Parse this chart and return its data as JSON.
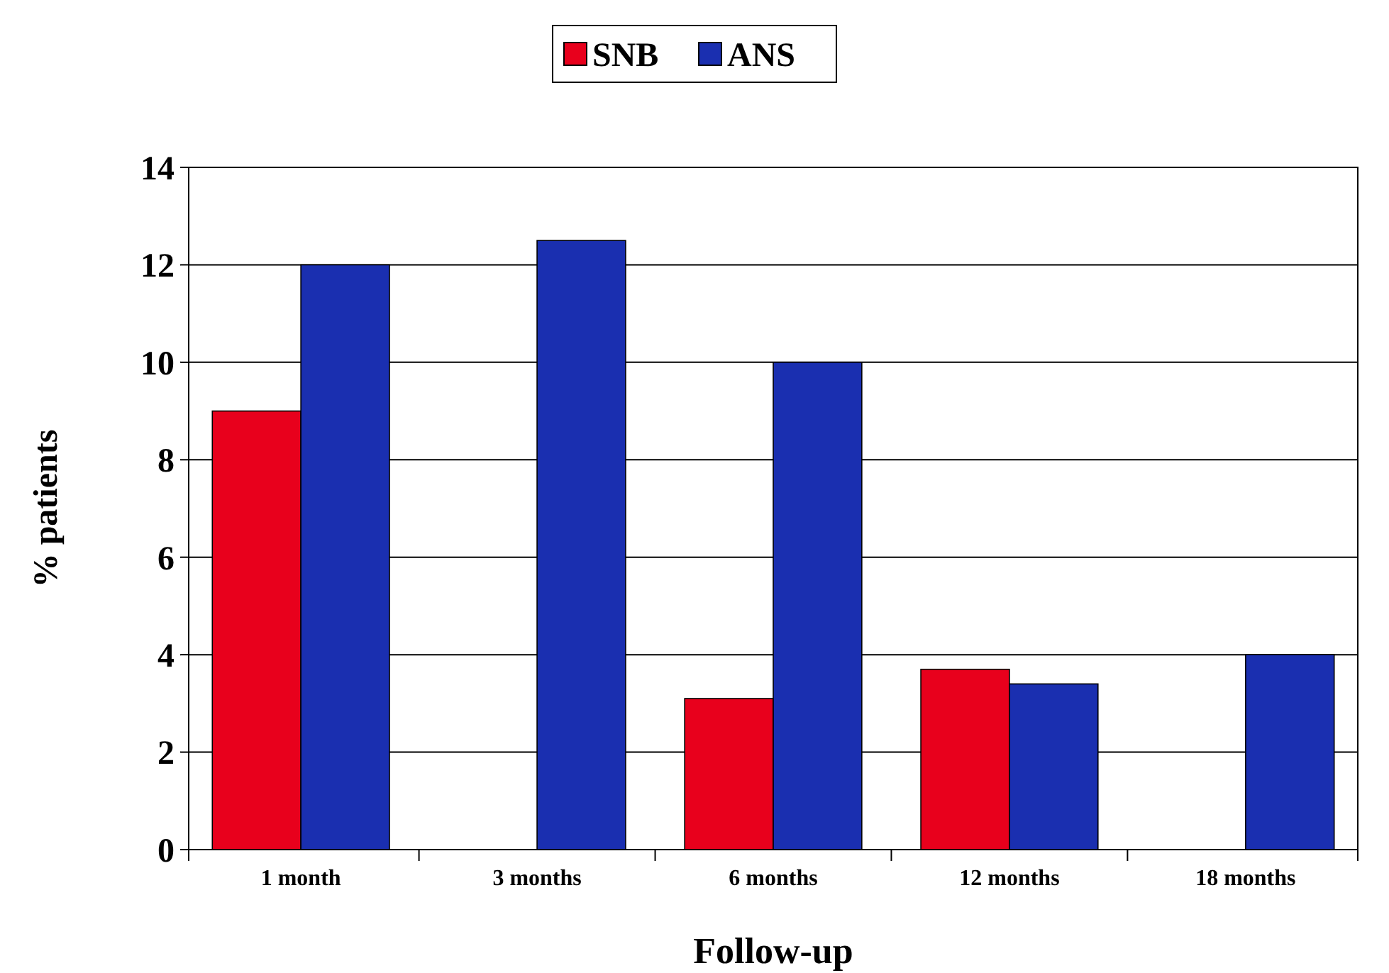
{
  "chart_data": {
    "type": "bar",
    "xlabel": "Follow-up",
    "ylabel": "% patients",
    "categories": [
      "1 month",
      "3 months",
      "6 months",
      "12 months",
      "18 months"
    ],
    "series": [
      {
        "name": "SNB",
        "color": "#e8001c",
        "values": [
          9,
          0,
          3.1,
          3.7,
          0
        ]
      },
      {
        "name": "ANS",
        "color": "#1a2fb0",
        "values": [
          12,
          12.5,
          10,
          3.4,
          4
        ]
      }
    ],
    "ylim": [
      0,
      14
    ],
    "yticks": [
      0,
      2,
      4,
      6,
      8,
      10,
      12,
      14
    ],
    "grid": "y",
    "legend": "top"
  }
}
